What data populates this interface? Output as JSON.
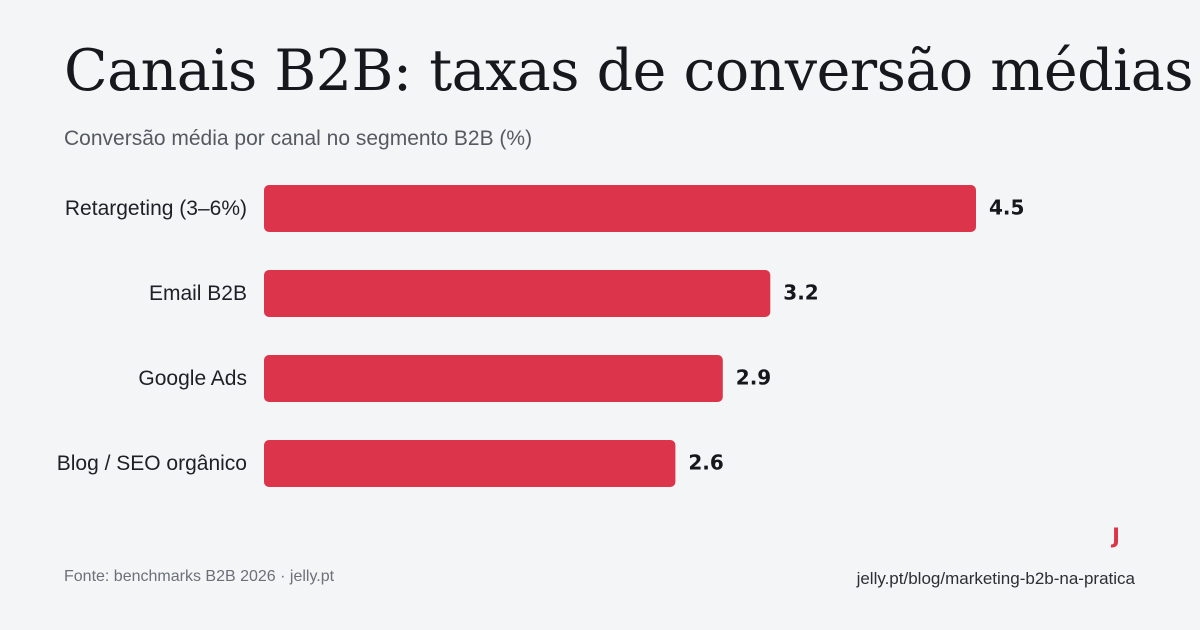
{
  "title": "Canais B2B: taxas de conversão médias",
  "subtitle": "Conversão média por canal no segmento B2B (%)",
  "footer": {
    "source": "Fonte: benchmarks B2B 2026 · jelly.pt",
    "url": "jelly.pt/blog/marketing-b2b-na-pratica",
    "logo_letter": "J"
  },
  "colors": {
    "bar": "#dc354b",
    "background": "#f4f5f7",
    "logo": "#dc354b"
  },
  "chart_data": {
    "type": "bar",
    "orientation": "horizontal",
    "title": "Canais B2B: taxas de conversão médias",
    "subtitle": "Conversão média por canal no segmento B2B (%)",
    "categories": [
      "Retargeting (3–6%)",
      "Email B2B",
      "Google Ads",
      "Blog / SEO orgânico"
    ],
    "values": [
      4.5,
      3.2,
      2.9,
      2.6
    ],
    "value_labels": [
      "4.5",
      "3.2",
      "2.9",
      "2.6"
    ],
    "xlim": [
      0,
      4.5
    ],
    "grid": false,
    "legend": "none"
  }
}
